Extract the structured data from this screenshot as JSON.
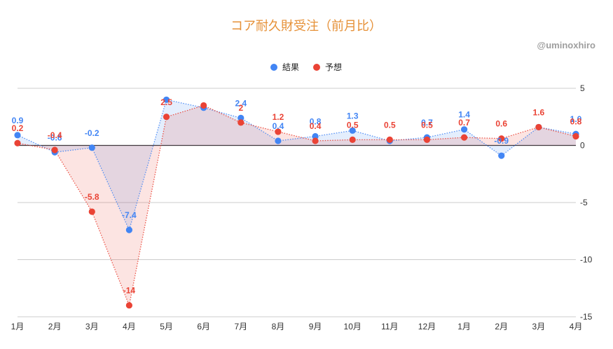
{
  "watermark": "@uminoxhiro",
  "colors": {
    "title": "#E69138",
    "watermark": "#9E9E9E",
    "gridline": "#CCCCCC",
    "zero_line": "#333333"
  },
  "chart_data": {
    "type": "line",
    "title": "コア耐久財受注（前月比）",
    "categories": [
      "1月",
      "2月",
      "3月",
      "4月",
      "5月",
      "6月",
      "7月",
      "8月",
      "9月",
      "10月",
      "11月",
      "12月",
      "1月",
      "2月",
      "3月",
      "4月"
    ],
    "ylim": [
      -15,
      5
    ],
    "yticks": [
      5,
      0,
      -5,
      -10,
      -15
    ],
    "y_axis": "right",
    "grid": true,
    "legend": "top",
    "series": [
      {
        "name": "結果",
        "color": "#4285F4",
        "values": [
          0.9,
          -0.6,
          -0.2,
          -7.4,
          4.0,
          3.3,
          2.4,
          0.4,
          0.8,
          1.3,
          0.4,
          0.7,
          1.4,
          -0.9,
          1.6,
          1.0
        ],
        "labels": [
          "0.9",
          "-0.6",
          "-0.2",
          "-7.4",
          null,
          null,
          "2.4",
          "0.4",
          "0.8",
          "1.3",
          null,
          "0.7",
          "1.4",
          "-0.9",
          null,
          "1.0"
        ]
      },
      {
        "name": "予想",
        "color": "#EA4335",
        "values": [
          0.2,
          -0.4,
          -5.8,
          -14,
          2.5,
          3.5,
          2,
          1.2,
          0.4,
          0.5,
          0.5,
          0.5,
          0.7,
          0.6,
          1.6,
          0.8
        ],
        "labels": [
          "0.2",
          "-0.4",
          "-5.8",
          "-14",
          "2.5",
          null,
          "2",
          "1.2",
          "0.4",
          "0.5",
          "0.5",
          "0.5",
          "0.7",
          "0.6",
          "1.6",
          "0.8"
        ]
      }
    ]
  }
}
